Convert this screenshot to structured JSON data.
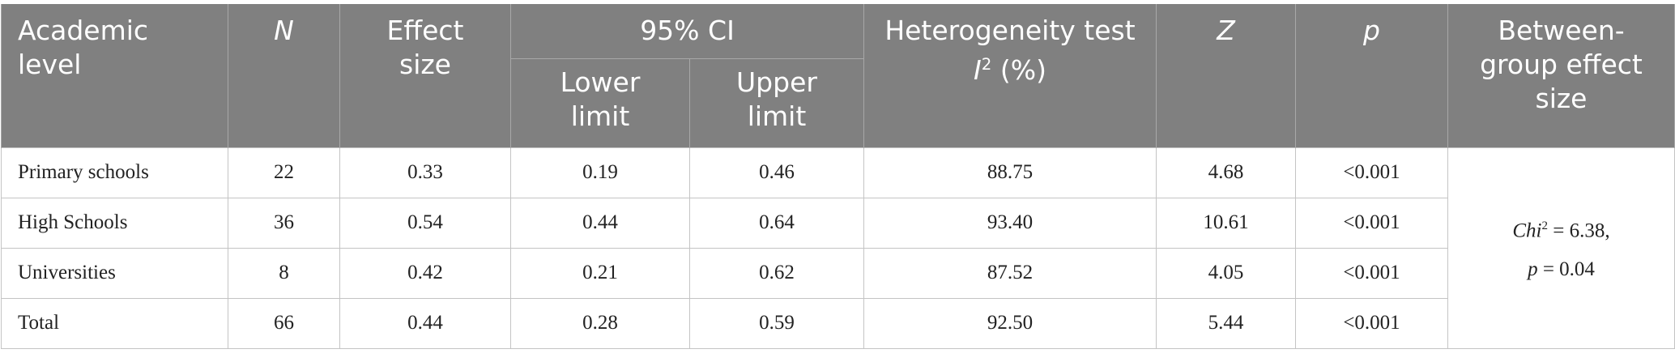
{
  "table": {
    "header": {
      "academic_level": "Academic level",
      "n": "N",
      "effect_size": "Effect size",
      "ci": "95% CI",
      "lower": "Lower limit",
      "upper": "Upper limit",
      "heterogeneity": {
        "text": "Heterogeneity test",
        "symbol": "I",
        "sup": "2",
        "unit": "(%)"
      },
      "z": "Z",
      "p": "p",
      "between": "Between-group effect size"
    },
    "rows": [
      [
        "Primary schools",
        "22",
        "0.33",
        "0.19",
        "0.46",
        "88.75",
        "4.68",
        "<0.001"
      ],
      [
        "High Schools",
        "36",
        "0.54",
        "0.44",
        "0.64",
        "93.40",
        "10.61",
        "<0.001"
      ],
      [
        "Universities",
        "8",
        "0.42",
        "0.21",
        "0.62",
        "87.52",
        "4.05",
        "<0.001"
      ],
      [
        "Total",
        "66",
        "0.44",
        "0.28",
        "0.59",
        "92.50",
        "5.44",
        "<0.001"
      ]
    ],
    "between_group": {
      "chi": "Chi",
      "sup": "2",
      "chi_value": "= 6.38,",
      "p": "p",
      "p_value": "= 0.04"
    }
  }
}
